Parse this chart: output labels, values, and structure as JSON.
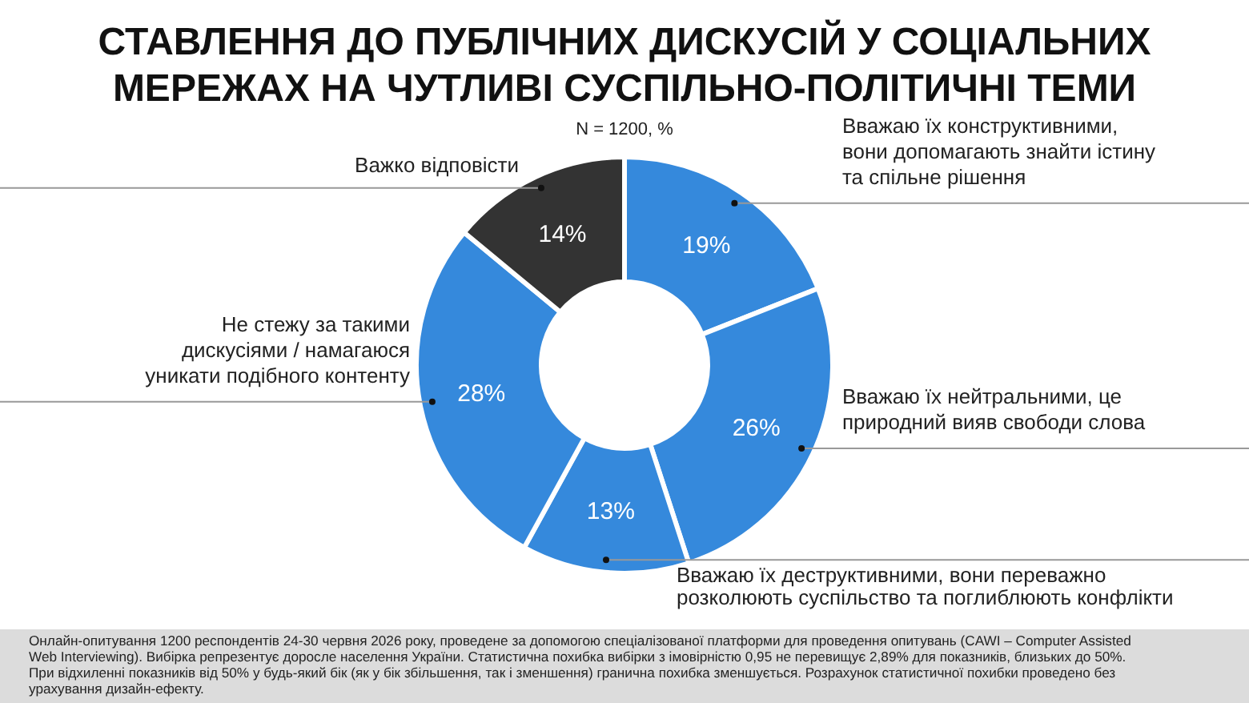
{
  "chart_data": {
    "type": "donut",
    "title": "СТАВЛЕННЯ ДО ПУБЛІЧНИХ ДИСКУСІЙ У СОЦІАЛЬНИХ МЕРЕЖАХ НА ЧУТЛИВІ СУСПІЛЬНО-ПОЛІТИЧНІ ТЕМИ",
    "subtitle": "N = 1200, %",
    "categories": [
      "Вважаю їх конструктивними, вони допомагають знайти істину та спільне рішення",
      "Вважаю їх нейтральними, це природний вияв свободи слова",
      "Вважаю їх деструктивними, вони переважно розколюють суспільство та поглиблюють конфлікти",
      "Не стежу за такими дискусіями / намагаюся уникати подібного контенту",
      "Важко відповісти"
    ],
    "values": [
      19,
      26,
      13,
      28,
      14
    ],
    "value_labels": [
      "19%",
      "26%",
      "13%",
      "28%",
      "14%"
    ],
    "colors": [
      "#3589dc",
      "#3589dc",
      "#3589dc",
      "#3589dc",
      "#333333"
    ],
    "legend": false,
    "annotations": [
      "Онлайн-опитування 1200 респондентів 24-30 червня 2026 року, проведене за допомогою спеціалізованої платформи для проведення опитувань (CAWI – Computer Assisted Web Interviewing). Вибірка репрезентує доросле населення України. Статистична похибка вибірки з імовірністю 0,95 не перевищує 2,89% для показників, близьких до 50%. При відхиленні показників від 50% у будь-який бік (як у бік збільшення, так і зменшення) гранична похибка зменшується. Розрахунок статистичної похибки проведено без урахування дизайн-ефекту."
    ]
  }
}
